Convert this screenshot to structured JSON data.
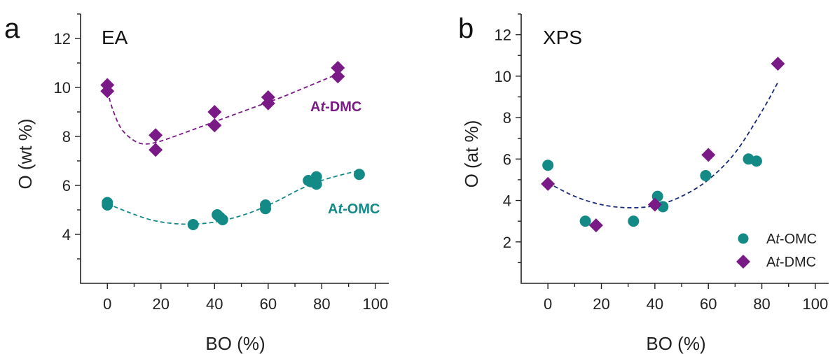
{
  "colors": {
    "omc": "#138a86",
    "dmc": "#7a1a86",
    "fit_xps": "#1a2a7a"
  },
  "chart_data": [
    {
      "type": "scatter",
      "panel_letter": "a",
      "title": "EA",
      "xlabel": "BO (%)",
      "ylabel": "O (wt %)",
      "xlim": [
        -10,
        105
      ],
      "ylim": [
        2,
        13
      ],
      "xticks": [
        0,
        20,
        40,
        60,
        80,
        100
      ],
      "yticks": [
        4,
        6,
        8,
        10,
        12
      ],
      "xtick_labels": [
        "0",
        "20",
        "40",
        "60",
        "80",
        "100"
      ],
      "ytick_labels": [
        "4",
        "6",
        "8",
        "10",
        "12"
      ],
      "series": [
        {
          "name": "At-OMC",
          "label_prefix": "A",
          "label_italic": "t",
          "label_suffix": "-OMC",
          "marker": "circle",
          "color_key": "omc",
          "x": [
            0,
            0,
            32,
            41,
            42,
            43,
            59,
            59,
            75,
            76,
            78,
            78,
            94
          ],
          "y": [
            5.2,
            5.3,
            4.4,
            4.8,
            4.7,
            4.6,
            5.05,
            5.2,
            6.2,
            6.15,
            6.05,
            6.35,
            6.45
          ],
          "fit_x": [
            0,
            8,
            16,
            24,
            32,
            40,
            48,
            56,
            64,
            72,
            80,
            88,
            94
          ],
          "fit_y": [
            5.25,
            4.9,
            4.6,
            4.45,
            4.42,
            4.5,
            4.7,
            5.0,
            5.4,
            5.85,
            6.2,
            6.45,
            6.6
          ]
        },
        {
          "name": "At-DMC",
          "label_prefix": "A",
          "label_italic": "t",
          "label_suffix": "-DMC",
          "marker": "diamond",
          "color_key": "dmc",
          "x": [
            0,
            0,
            18,
            18,
            40,
            40,
            60,
            60,
            86,
            86
          ],
          "y": [
            9.85,
            10.1,
            7.45,
            8.05,
            8.45,
            9.0,
            9.35,
            9.6,
            10.45,
            10.8
          ],
          "fit_x": [
            0,
            2,
            5,
            9,
            13,
            18,
            25,
            35,
            45,
            55,
            65,
            75,
            86
          ],
          "fit_y": [
            9.85,
            9.1,
            8.35,
            7.9,
            7.7,
            7.75,
            8.0,
            8.4,
            8.8,
            9.2,
            9.6,
            10.05,
            10.55
          ]
        }
      ]
    },
    {
      "type": "scatter",
      "panel_letter": "b",
      "title": "XPS",
      "xlabel": "BO (%)",
      "ylabel": "O (at %)",
      "xlim": [
        -10,
        105
      ],
      "ylim": [
        0,
        13
      ],
      "xticks": [
        0,
        20,
        40,
        60,
        80,
        100
      ],
      "yticks": [
        2,
        4,
        6,
        8,
        10,
        12
      ],
      "xtick_labels": [
        "0",
        "20",
        "40",
        "60",
        "80",
        "100"
      ],
      "ytick_labels": [
        "2",
        "4",
        "6",
        "8",
        "10",
        "12"
      ],
      "legend_position": "bottom-right",
      "series": [
        {
          "name": "At-OMC",
          "label_prefix": "A",
          "label_italic": "t",
          "label_suffix": "-OMC",
          "marker": "circle",
          "color_key": "omc",
          "x": [
            0,
            14,
            32,
            41,
            43,
            59,
            75,
            78
          ],
          "y": [
            5.7,
            3.0,
            3.0,
            4.2,
            3.7,
            5.2,
            6.0,
            5.9
          ]
        },
        {
          "name": "At-DMC",
          "label_prefix": "A",
          "label_italic": "t",
          "label_suffix": "-DMC",
          "marker": "diamond",
          "color_key": "dmc",
          "x": [
            0,
            18,
            40,
            60,
            86
          ],
          "y": [
            4.8,
            2.8,
            3.8,
            6.2,
            10.6
          ]
        }
      ],
      "fit": {
        "color_key": "fit_xps",
        "x": [
          0,
          10,
          20,
          30,
          40,
          50,
          60,
          70,
          80,
          86
        ],
        "y": [
          4.85,
          4.2,
          3.8,
          3.65,
          3.75,
          4.2,
          5.0,
          6.3,
          8.3,
          9.7
        ]
      }
    }
  ]
}
